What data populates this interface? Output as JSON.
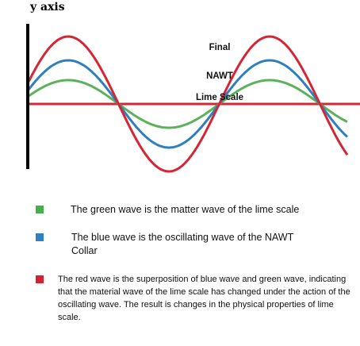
{
  "axis": {
    "y_label": "y axis"
  },
  "waves": [
    {
      "key": "green",
      "label": "Lime Scale",
      "color": "#5db15d",
      "amplitude": 0.6
    },
    {
      "key": "blue",
      "label": "NAWT",
      "color": "#2f7fbf",
      "amplitude": 1.1
    },
    {
      "key": "red",
      "label": "Final",
      "color": "#d42634",
      "amplitude": 1.7
    }
  ],
  "baseline_color": "#d42634",
  "legend": [
    {
      "color": "#43b04a",
      "text": "The green wave is the matter wave of the lime scale"
    },
    {
      "color": "#2f7fc1",
      "text": "The blue wave is the oscillating wave of the NAWT Collar"
    },
    {
      "color": "#d4202f",
      "text": "The red wave is the superposition of blue wave and green wave, indicating that the material wave of the lime scale has changed under the action of the oscillating wave. The result is changes in the physical properties of lime scale."
    }
  ]
}
